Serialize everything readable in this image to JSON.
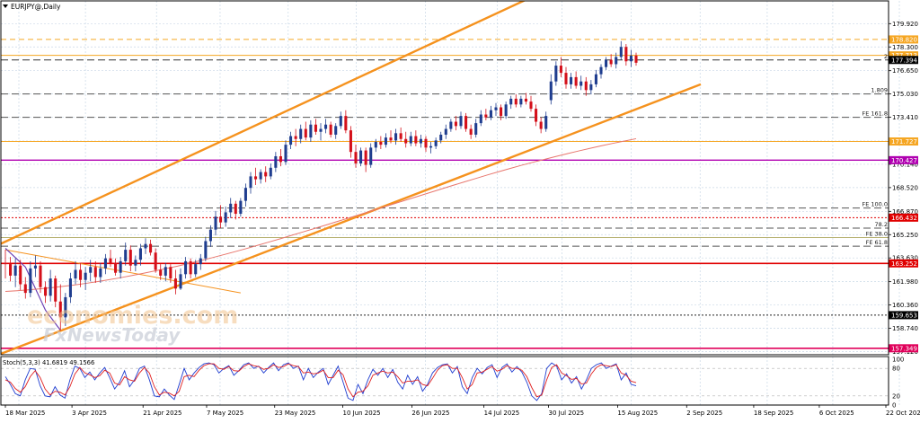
{
  "header": {
    "symbol_label": "EURJPY@,Daily"
  },
  "colors": {
    "bull_candle": "#1f3d8f",
    "bear_candle": "#d4101a",
    "channel": "#f5921e",
    "ma": "#e8766d",
    "fib_dashed": "#555555",
    "level_orange": "#f5a623",
    "level_magenta": "#b000b0",
    "level_red": "#e00000",
    "level_pink": "#e0005a",
    "stoch_main": "#1f3dd0",
    "stoch_signal": "#e02020",
    "grid": "#c9d8e6"
  },
  "chart_data": {
    "type": "candlestick",
    "symbol": "EURJPY@",
    "timeframe": "Daily",
    "ylim": [
      156.9,
      181.5
    ],
    "y_ticks": [
      "179.920",
      "178.300",
      "176.650",
      "175.030",
      "173.410",
      "171.760",
      "170.140",
      "168.520",
      "166.870",
      "165.250",
      "163.630",
      "161.980",
      "160.360",
      "158.740",
      "157.120"
    ],
    "x_tick_labels": [
      "18 Mar 2025",
      "3 Apr 2025",
      "21 Apr 2025",
      "7 May 2025",
      "23 May 2025",
      "10 Jun 2025",
      "26 Jun 2025",
      "14 Jul 2025",
      "30 Jul 2025",
      "15 Aug 2025",
      "2 Sep 2025",
      "18 Sep 2025",
      "6 Oct 2025",
      "22 Oct 2025"
    ],
    "ohlc": [
      [
        163.3,
        164.2,
        162.2,
        163.2
      ],
      [
        163.2,
        163.7,
        162.0,
        162.4
      ],
      [
        162.4,
        163.6,
        161.6,
        163.1
      ],
      [
        163.1,
        163.5,
        161.4,
        161.8
      ],
      [
        161.8,
        162.3,
        160.8,
        161.2
      ],
      [
        161.2,
        163.4,
        160.9,
        162.9
      ],
      [
        162.9,
        163.8,
        162.3,
        163.1
      ],
      [
        163.1,
        163.4,
        161.2,
        161.6
      ],
      [
        161.6,
        162.0,
        160.5,
        161.0
      ],
      [
        161.0,
        162.8,
        160.6,
        162.2
      ],
      [
        162.2,
        162.4,
        160.2,
        160.6
      ],
      [
        160.6,
        161.8,
        158.6,
        159.5
      ],
      [
        159.5,
        161.2,
        158.9,
        160.9
      ],
      [
        160.9,
        162.6,
        160.5,
        162.2
      ],
      [
        162.2,
        163.4,
        161.8,
        162.8
      ],
      [
        162.8,
        163.3,
        161.6,
        162.1
      ],
      [
        162.1,
        163.0,
        161.4,
        162.6
      ],
      [
        162.6,
        163.5,
        162.0,
        163.0
      ],
      [
        163.0,
        163.4,
        161.9,
        162.3
      ],
      [
        162.3,
        163.3,
        161.9,
        162.9
      ],
      [
        162.9,
        163.9,
        162.5,
        163.6
      ],
      [
        163.6,
        164.2,
        163.0,
        163.3
      ],
      [
        163.3,
        163.6,
        162.4,
        162.6
      ],
      [
        162.6,
        163.7,
        162.2,
        163.4
      ],
      [
        163.4,
        164.7,
        163.1,
        164.2
      ],
      [
        164.2,
        164.5,
        162.7,
        163.1
      ],
      [
        163.1,
        163.8,
        162.7,
        163.5
      ],
      [
        163.5,
        164.6,
        163.1,
        164.3
      ],
      [
        164.3,
        165.0,
        163.9,
        164.6
      ],
      [
        164.6,
        164.9,
        163.8,
        164.0
      ],
      [
        164.0,
        164.3,
        162.6,
        162.8
      ],
      [
        162.8,
        163.2,
        162.1,
        162.4
      ],
      [
        162.4,
        163.3,
        162.0,
        163.0
      ],
      [
        163.0,
        163.2,
        161.9,
        162.2
      ],
      [
        162.2,
        162.8,
        161.1,
        161.5
      ],
      [
        161.5,
        162.9,
        161.4,
        162.5
      ],
      [
        162.5,
        163.7,
        162.2,
        163.4
      ],
      [
        163.4,
        163.6,
        162.2,
        162.5
      ],
      [
        162.5,
        163.5,
        162.3,
        163.2
      ],
      [
        163.2,
        163.9,
        162.8,
        163.6
      ],
      [
        163.6,
        165.1,
        163.4,
        164.8
      ],
      [
        164.8,
        165.9,
        164.4,
        165.6
      ],
      [
        165.6,
        166.9,
        165.2,
        166.5
      ],
      [
        166.5,
        167.3,
        165.7,
        166.1
      ],
      [
        166.1,
        167.2,
        165.8,
        166.8
      ],
      [
        166.8,
        167.8,
        166.4,
        167.4
      ],
      [
        167.4,
        167.6,
        166.3,
        166.7
      ],
      [
        166.7,
        167.8,
        166.5,
        167.6
      ],
      [
        167.6,
        168.8,
        167.2,
        168.5
      ],
      [
        168.5,
        169.6,
        168.1,
        169.3
      ],
      [
        169.3,
        169.9,
        168.7,
        169.1
      ],
      [
        169.1,
        169.8,
        168.8,
        169.6
      ],
      [
        169.6,
        170.0,
        168.9,
        169.3
      ],
      [
        169.3,
        170.2,
        169.1,
        169.9
      ],
      [
        169.9,
        171.0,
        169.6,
        170.7
      ],
      [
        170.7,
        171.2,
        170.0,
        170.3
      ],
      [
        170.3,
        171.8,
        170.1,
        171.5
      ],
      [
        171.5,
        172.4,
        171.2,
        172.1
      ],
      [
        172.1,
        172.6,
        171.4,
        171.9
      ],
      [
        171.9,
        172.9,
        171.6,
        172.6
      ],
      [
        172.6,
        173.1,
        171.8,
        172.0
      ],
      [
        172.0,
        173.2,
        171.7,
        172.9
      ],
      [
        172.9,
        173.3,
        172.2,
        172.4
      ],
      [
        172.4,
        173.0,
        171.8,
        172.6
      ],
      [
        172.6,
        173.3,
        172.3,
        172.9
      ],
      [
        172.9,
        173.1,
        172.0,
        172.2
      ],
      [
        172.2,
        173.0,
        171.9,
        172.8
      ],
      [
        172.8,
        173.8,
        172.6,
        173.5
      ],
      [
        173.5,
        173.9,
        172.3,
        172.5
      ],
      [
        172.5,
        172.8,
        170.6,
        171.0
      ],
      [
        171.0,
        171.5,
        169.9,
        170.2
      ],
      [
        170.2,
        171.3,
        170.0,
        171.1
      ],
      [
        171.1,
        171.3,
        169.6,
        170.1
      ],
      [
        170.1,
        171.6,
        169.9,
        171.3
      ],
      [
        171.3,
        171.9,
        171.0,
        171.7
      ],
      [
        171.7,
        172.1,
        171.2,
        171.5
      ],
      [
        171.5,
        172.3,
        171.3,
        172.0
      ],
      [
        172.0,
        172.5,
        171.6,
        171.8
      ],
      [
        171.8,
        172.6,
        171.5,
        172.3
      ],
      [
        172.3,
        172.7,
        171.7,
        171.9
      ],
      [
        171.9,
        172.4,
        171.3,
        171.6
      ],
      [
        171.6,
        172.4,
        171.4,
        172.1
      ],
      [
        172.1,
        172.5,
        171.4,
        171.6
      ],
      [
        171.6,
        172.2,
        171.3,
        171.9
      ],
      [
        171.9,
        172.1,
        171.0,
        171.3
      ],
      [
        171.3,
        171.7,
        170.9,
        171.4
      ],
      [
        171.4,
        172.0,
        171.2,
        171.8
      ],
      [
        171.8,
        172.4,
        171.6,
        172.2
      ],
      [
        172.2,
        172.9,
        171.9,
        172.6
      ],
      [
        172.6,
        173.3,
        172.4,
        173.1
      ],
      [
        173.1,
        173.5,
        172.5,
        172.8
      ],
      [
        172.8,
        173.8,
        172.6,
        173.5
      ],
      [
        173.5,
        173.7,
        172.4,
        172.6
      ],
      [
        172.6,
        172.9,
        171.9,
        172.2
      ],
      [
        172.2,
        173.3,
        172.0,
        173.0
      ],
      [
        173.0,
        173.9,
        172.8,
        173.6
      ],
      [
        173.6,
        174.0,
        173.2,
        173.4
      ],
      [
        173.4,
        174.2,
        173.2,
        173.9
      ],
      [
        173.9,
        174.4,
        173.5,
        174.1
      ],
      [
        174.1,
        174.3,
        173.2,
        173.5
      ],
      [
        173.5,
        174.5,
        173.3,
        174.3
      ],
      [
        174.3,
        174.9,
        174.0,
        174.7
      ],
      [
        174.7,
        175.0,
        174.1,
        174.3
      ],
      [
        174.3,
        174.9,
        174.1,
        174.7
      ],
      [
        174.7,
        175.1,
        174.3,
        174.5
      ],
      [
        174.5,
        174.9,
        173.8,
        174.0
      ],
      [
        174.0,
        174.3,
        172.8,
        173.1
      ],
      [
        173.1,
        173.4,
        172.3,
        172.6
      ],
      [
        172.6,
        173.8,
        172.4,
        173.5
      ],
      [
        174.6,
        176.4,
        174.3,
        175.9
      ],
      [
        175.9,
        177.3,
        175.6,
        177.0
      ],
      [
        177.0,
        177.6,
        176.2,
        176.5
      ],
      [
        176.5,
        176.9,
        175.4,
        175.7
      ],
      [
        175.7,
        176.5,
        175.4,
        176.2
      ],
      [
        176.2,
        176.6,
        175.4,
        175.6
      ],
      [
        175.6,
        176.3,
        175.3,
        175.9
      ],
      [
        175.9,
        176.2,
        174.9,
        175.3
      ],
      [
        175.3,
        176.0,
        175.0,
        175.7
      ],
      [
        175.7,
        176.7,
        175.5,
        176.4
      ],
      [
        176.4,
        177.1,
        176.1,
        176.9
      ],
      [
        176.9,
        177.6,
        176.7,
        177.4
      ],
      [
        177.4,
        177.8,
        176.9,
        177.1
      ],
      [
        177.1,
        177.9,
        176.8,
        177.6
      ],
      [
        177.6,
        178.7,
        177.4,
        178.3
      ],
      [
        178.3,
        178.5,
        177.0,
        177.3
      ],
      [
        177.3,
        178.1,
        176.9,
        177.7
      ],
      [
        177.7,
        177.9,
        177.0,
        177.2
      ]
    ],
    "moving_average": [
      161.3,
      161.35,
      161.41,
      161.48,
      161.56,
      161.65,
      161.75,
      161.86,
      161.98,
      162.11,
      162.25,
      162.4,
      162.56,
      162.72,
      162.89,
      163.06,
      163.25,
      163.44,
      163.64,
      163.85,
      164.06,
      164.28,
      164.51,
      164.74,
      164.97,
      165.21,
      165.45,
      165.69,
      165.93,
      166.18,
      166.42,
      166.67,
      166.92,
      167.17,
      167.42,
      167.67,
      167.92,
      168.17,
      168.42,
      168.67,
      168.91,
      169.15,
      169.39,
      169.62,
      169.85,
      170.07,
      170.28,
      170.48,
      170.68,
      170.88,
      171.07,
      171.25,
      171.43,
      171.6,
      171.76,
      171.92
    ],
    "channel_upper": {
      "start_price": 164.3,
      "end_price": 183.6
    },
    "channel_lower": {
      "start_price": 156.7,
      "end_price": 175.7
    },
    "horizontal_levels": [
      {
        "price": 178.82,
        "label": "178.820",
        "style": "dashed-orange"
      },
      {
        "price": 177.713,
        "label": "177.713",
        "style": "solid-orange"
      },
      {
        "price": 177.394,
        "label": "177.394",
        "style": "dashed-grey-dark",
        "fib": "2"
      },
      {
        "price": 175.03,
        "label": "",
        "style": "dashed-grey",
        "fib": "1.809"
      },
      {
        "price": 173.41,
        "label": "",
        "style": "dashed-grey",
        "fib": "FE 161.8"
      },
      {
        "price": 171.727,
        "label": "171.727",
        "style": "solid-orange"
      },
      {
        "price": 170.427,
        "label": "170.427",
        "style": "solid-magenta"
      },
      {
        "price": 167.1,
        "label": "",
        "style": "dashed-grey",
        "fib": "FE 100.0"
      },
      {
        "price": 166.432,
        "label": "166.432",
        "style": "dotted-red"
      },
      {
        "price": 165.7,
        "label": "",
        "style": "dashed-grey",
        "fib": "78.2"
      },
      {
        "price": 165.05,
        "label": "",
        "style": "solid-olive",
        "fib": "FE 38.0"
      },
      {
        "price": 164.45,
        "label": "",
        "style": "dashed-grey",
        "fib": "FE 61.8"
      },
      {
        "price": 163.252,
        "label": "163.252",
        "style": "solid-red"
      },
      {
        "price": 159.653,
        "label": "159.653",
        "style": "dotted-black"
      },
      {
        "price": 157.349,
        "label": "157.349",
        "style": "solid-pink"
      }
    ],
    "stochastic": {
      "label": "Stoch(5,3,3) 41.6819 49.1566",
      "ylim": [
        0,
        100
      ],
      "y_ticks": [
        "100",
        "80",
        "20",
        "0"
      ],
      "main": [
        62,
        45,
        25,
        20,
        55,
        80,
        78,
        42,
        20,
        18,
        40,
        22,
        15,
        55,
        85,
        80,
        60,
        72,
        55,
        70,
        82,
        60,
        35,
        50,
        75,
        40,
        55,
        80,
        85,
        55,
        20,
        18,
        35,
        22,
        12,
        45,
        80,
        55,
        70,
        82,
        90,
        92,
        88,
        70,
        80,
        86,
        65,
        75,
        88,
        92,
        80,
        85,
        70,
        82,
        92,
        75,
        88,
        92,
        80,
        85,
        55,
        80,
        60,
        72,
        80,
        45,
        65,
        85,
        50,
        15,
        10,
        45,
        25,
        55,
        78,
        65,
        80,
        60,
        78,
        50,
        35,
        65,
        45,
        62,
        30,
        45,
        70,
        82,
        88,
        90,
        70,
        84,
        40,
        25,
        60,
        80,
        68,
        82,
        88,
        60,
        82,
        90,
        72,
        84,
        72,
        50,
        20,
        10,
        25,
        80,
        92,
        85,
        55,
        68,
        48,
        62,
        35,
        55,
        80,
        88,
        92,
        80,
        85,
        90,
        55,
        70,
        45,
        42
      ],
      "signal": [
        55,
        50,
        36,
        28,
        40,
        62,
        75,
        60,
        35,
        22,
        30,
        28,
        22,
        40,
        68,
        82,
        70,
        66,
        60,
        64,
        76,
        70,
        48,
        44,
        62,
        55,
        52,
        70,
        82,
        70,
        40,
        22,
        28,
        26,
        20,
        30,
        62,
        65,
        62,
        76,
        86,
        90,
        90,
        80,
        78,
        84,
        75,
        74,
        84,
        90,
        86,
        84,
        78,
        80,
        88,
        82,
        84,
        90,
        86,
        84,
        70,
        72,
        68,
        70,
        76,
        60,
        60,
        76,
        66,
        35,
        18,
        28,
        30,
        42,
        65,
        70,
        74,
        70,
        72,
        62,
        48,
        52,
        52,
        55,
        45,
        42,
        58,
        76,
        86,
        88,
        80,
        80,
        60,
        35,
        45,
        70,
        72,
        78,
        84,
        74,
        78,
        86,
        80,
        80,
        76,
        62,
        38,
        18,
        22,
        55,
        82,
        88,
        70,
        64,
        56,
        58,
        46,
        48,
        68,
        82,
        88,
        86,
        84,
        88,
        70,
        65,
        52,
        49
      ]
    }
  }
}
